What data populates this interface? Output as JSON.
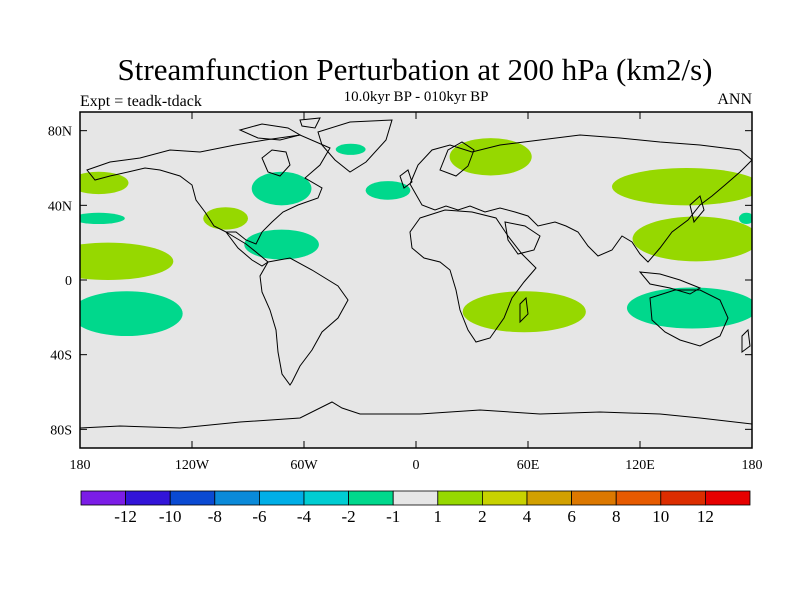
{
  "title": "Streamfunction Perturbation at 200 hPa (km2/s)",
  "subtitle": "10.0kyr BP - 010kyr BP",
  "left_note": "Expt = teadk-tdack",
  "right_note": "ANN",
  "colors": {
    "background": "#ffffff",
    "ocean_land_fill": "#e6e6e6",
    "coast": "#000000",
    "neg_small": "#00d88c",
    "pos_small": "#96d800"
  },
  "chart_data": {
    "type": "map",
    "lon_range": [
      -180,
      180
    ],
    "lat_range": [
      -90,
      90
    ],
    "x_ticks": [
      {
        "lon": -180,
        "label": "180"
      },
      {
        "lon": -120,
        "label": "120W"
      },
      {
        "lon": -60,
        "label": "60W"
      },
      {
        "lon": 0,
        "label": "0"
      },
      {
        "lon": 60,
        "label": "60E"
      },
      {
        "lon": 120,
        "label": "120E"
      },
      {
        "lon": 180,
        "label": "180"
      }
    ],
    "y_ticks": [
      {
        "lat": 80,
        "label": "80N"
      },
      {
        "lat": 40,
        "label": "40N"
      },
      {
        "lat": 0,
        "label": "0"
      },
      {
        "lat": -40,
        "label": "40S"
      },
      {
        "lat": -80,
        "label": "80S"
      }
    ],
    "colorbar": {
      "colors": [
        "#7b1de6",
        "#3214d8",
        "#0a4ad2",
        "#0a8ad9",
        "#00aee6",
        "#00cdd2",
        "#00d88c",
        "#e6e6e6",
        "#96d800",
        "#c8d200",
        "#d2a000",
        "#dc7800",
        "#e65a00",
        "#dc2d00",
        "#e60000"
      ],
      "labels": [
        "-12",
        "-10",
        "-8",
        "-6",
        "-4",
        "-2",
        "-1",
        "1",
        "2",
        "4",
        "6",
        "8",
        "10",
        "12"
      ]
    },
    "anomaly_regions": [
      {
        "color": "#00d88c",
        "lon": -155,
        "lat": -18,
        "rlon": 30,
        "rlat": 12
      },
      {
        "color": "#00d88c",
        "lon": -170,
        "lat": 33,
        "rlon": 14,
        "rlat": 3
      },
      {
        "color": "#96d800",
        "lon": -165,
        "lat": 10,
        "rlon": 35,
        "rlat": 10
      },
      {
        "color": "#96d800",
        "lon": -170,
        "lat": 52,
        "rlon": 16,
        "rlat": 6
      },
      {
        "color": "#96d800",
        "lon": -102,
        "lat": 33,
        "rlon": 12,
        "rlat": 6
      },
      {
        "color": "#00d88c",
        "lon": -72,
        "lat": 49,
        "rlon": 16,
        "rlat": 9
      },
      {
        "color": "#00d88c",
        "lon": -72,
        "lat": 19,
        "rlon": 20,
        "rlat": 8
      },
      {
        "color": "#00d88c",
        "lon": -35,
        "lat": 70,
        "rlon": 8,
        "rlat": 3
      },
      {
        "color": "#00d88c",
        "lon": -15,
        "lat": 48,
        "rlon": 12,
        "rlat": 5
      },
      {
        "color": "#96d800",
        "lon": 40,
        "lat": 66,
        "rlon": 22,
        "rlat": 10
      },
      {
        "color": "#96d800",
        "lon": 58,
        "lat": -17,
        "rlon": 33,
        "rlat": 11
      },
      {
        "color": "#96d800",
        "lon": 145,
        "lat": 50,
        "rlon": 40,
        "rlat": 10
      },
      {
        "color": "#96d800",
        "lon": 150,
        "lat": 22,
        "rlon": 34,
        "rlat": 12
      },
      {
        "color": "#00d88c",
        "lon": 148,
        "lat": -15,
        "rlon": 35,
        "rlat": 11
      },
      {
        "color": "#00d88c",
        "lon": 177,
        "lat": 33,
        "rlon": 4,
        "rlat": 3
      }
    ]
  }
}
